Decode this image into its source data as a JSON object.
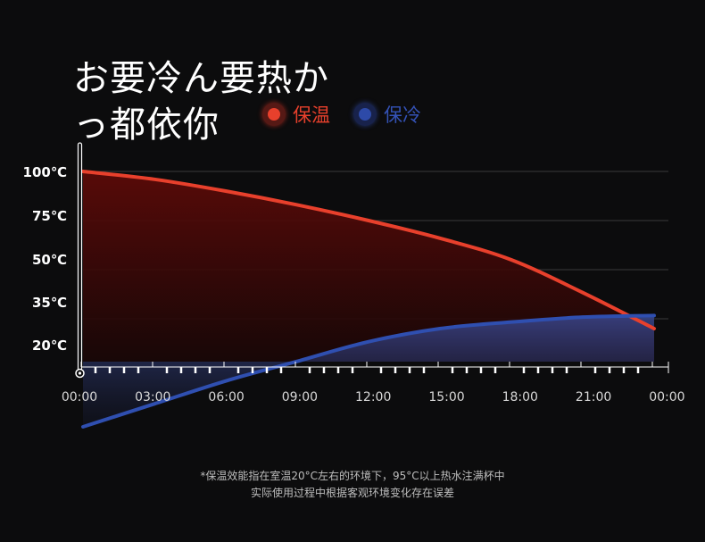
{
  "title": {
    "line1": "お要冷ん要热か",
    "line2": "っ都依你"
  },
  "legend": [
    {
      "label": "保温",
      "color": "#e8402c",
      "icon": "red-dot-icon"
    },
    {
      "label": "保冷",
      "color": "#2d4aa8",
      "icon": "blue-dot-icon"
    }
  ],
  "footnote": {
    "line1": "*保温效能指在室温20°C左右的环境下，95°C以上热水注满杯中",
    "line2": "实际使用过程中根据客观环境变化存在误差"
  },
  "chart_data": {
    "type": "area",
    "title": "",
    "xlabel": "",
    "ylabel": "",
    "x": [
      "00:00",
      "03:00",
      "06:00",
      "09:00",
      "12:00",
      "15:00",
      "18:00",
      "21:00",
      "00:00"
    ],
    "y_tick_labels": [
      "100℃",
      "75℃",
      "50℃",
      "35℃",
      "20℃"
    ],
    "y_tick_values": [
      100,
      75,
      50,
      35,
      20
    ],
    "grid": true,
    "series": [
      {
        "name": "保温",
        "color": "#e8402c",
        "values": [
          100,
          96,
          90,
          83,
          75,
          66,
          55,
          43,
          32
        ]
      },
      {
        "name": "保冷",
        "color": "#2d4aa8",
        "values": [
          2,
          9,
          16,
          22,
          28,
          32,
          34,
          35.5,
          36
        ]
      }
    ]
  }
}
